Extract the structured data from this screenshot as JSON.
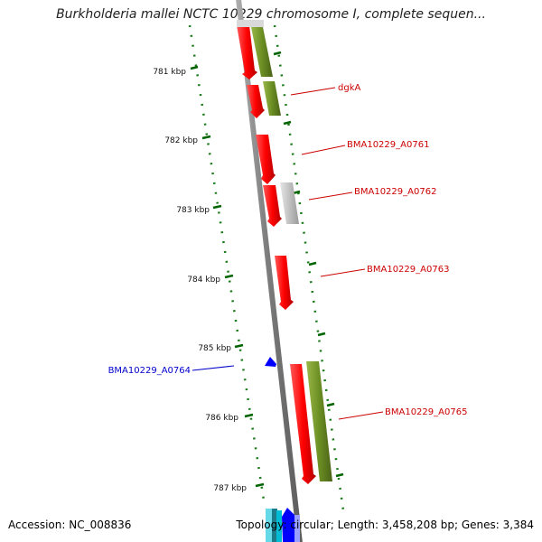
{
  "title": "Burkholderia mallei NCTC 10229 chromosome I, complete sequen...",
  "footer": {
    "accession": "Accession: NC_008836",
    "stats": "Topology: circular; Length: 3,458,208 bp; Genes: 3,384"
  },
  "ticks": [
    "781 kbp",
    "782 kbp",
    "783 kbp",
    "784 kbp",
    "785 kbp",
    "786 kbp",
    "787 kbp"
  ],
  "gene_labels": [
    {
      "name": "dgkA",
      "color": "#cc0000"
    },
    {
      "name": "BMA10229_A0761",
      "color": "#cc0000"
    },
    {
      "name": "BMA10229_A0762",
      "color": "#cc0000"
    },
    {
      "name": "BMA10229_A0763",
      "color": "#cc0000"
    },
    {
      "name": "BMA10229_A0764",
      "color": "#0000cc"
    },
    {
      "name": "BMA10229_A0765",
      "color": "#cc0000"
    }
  ],
  "colors": {
    "cds": "#ff0000",
    "olive": "#6b8e23",
    "gray": "#bdbdbd",
    "blue": "#0000ff",
    "backbone": "#808080",
    "tick": "#006400"
  }
}
